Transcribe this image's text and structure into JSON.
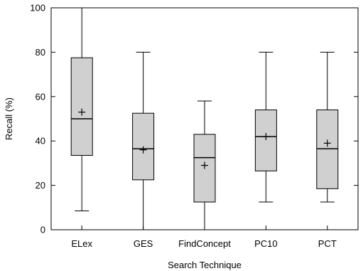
{
  "chart_data": {
    "type": "boxplot",
    "title": "",
    "xlabel": "Search Technique",
    "ylabel": "Recall (%)",
    "ylim": [
      0,
      100
    ],
    "yticks": [
      0,
      20,
      40,
      60,
      80,
      100
    ],
    "grid": false,
    "legend": "none",
    "box_fill": "#d0d0d0",
    "categories": [
      "ELex",
      "GES",
      "FindConcept",
      "PC10",
      "PCT"
    ],
    "boxes": [
      {
        "min": 8.5,
        "q1": 33.5,
        "median": 50,
        "q3": 77.5,
        "max": 100,
        "mean": 53
      },
      {
        "min": 0,
        "q1": 22.5,
        "median": 36.5,
        "q3": 52.5,
        "max": 80,
        "mean": 36
      },
      {
        "min": 0,
        "q1": 12.5,
        "median": 32.5,
        "q3": 43,
        "max": 58,
        "mean": 29
      },
      {
        "min": 12.5,
        "q1": 26.5,
        "median": 42,
        "q3": 54,
        "max": 80,
        "mean": 42
      },
      {
        "min": 12.5,
        "q1": 18.5,
        "median": 36.5,
        "q3": 54,
        "max": 80,
        "mean": 39
      }
    ]
  }
}
